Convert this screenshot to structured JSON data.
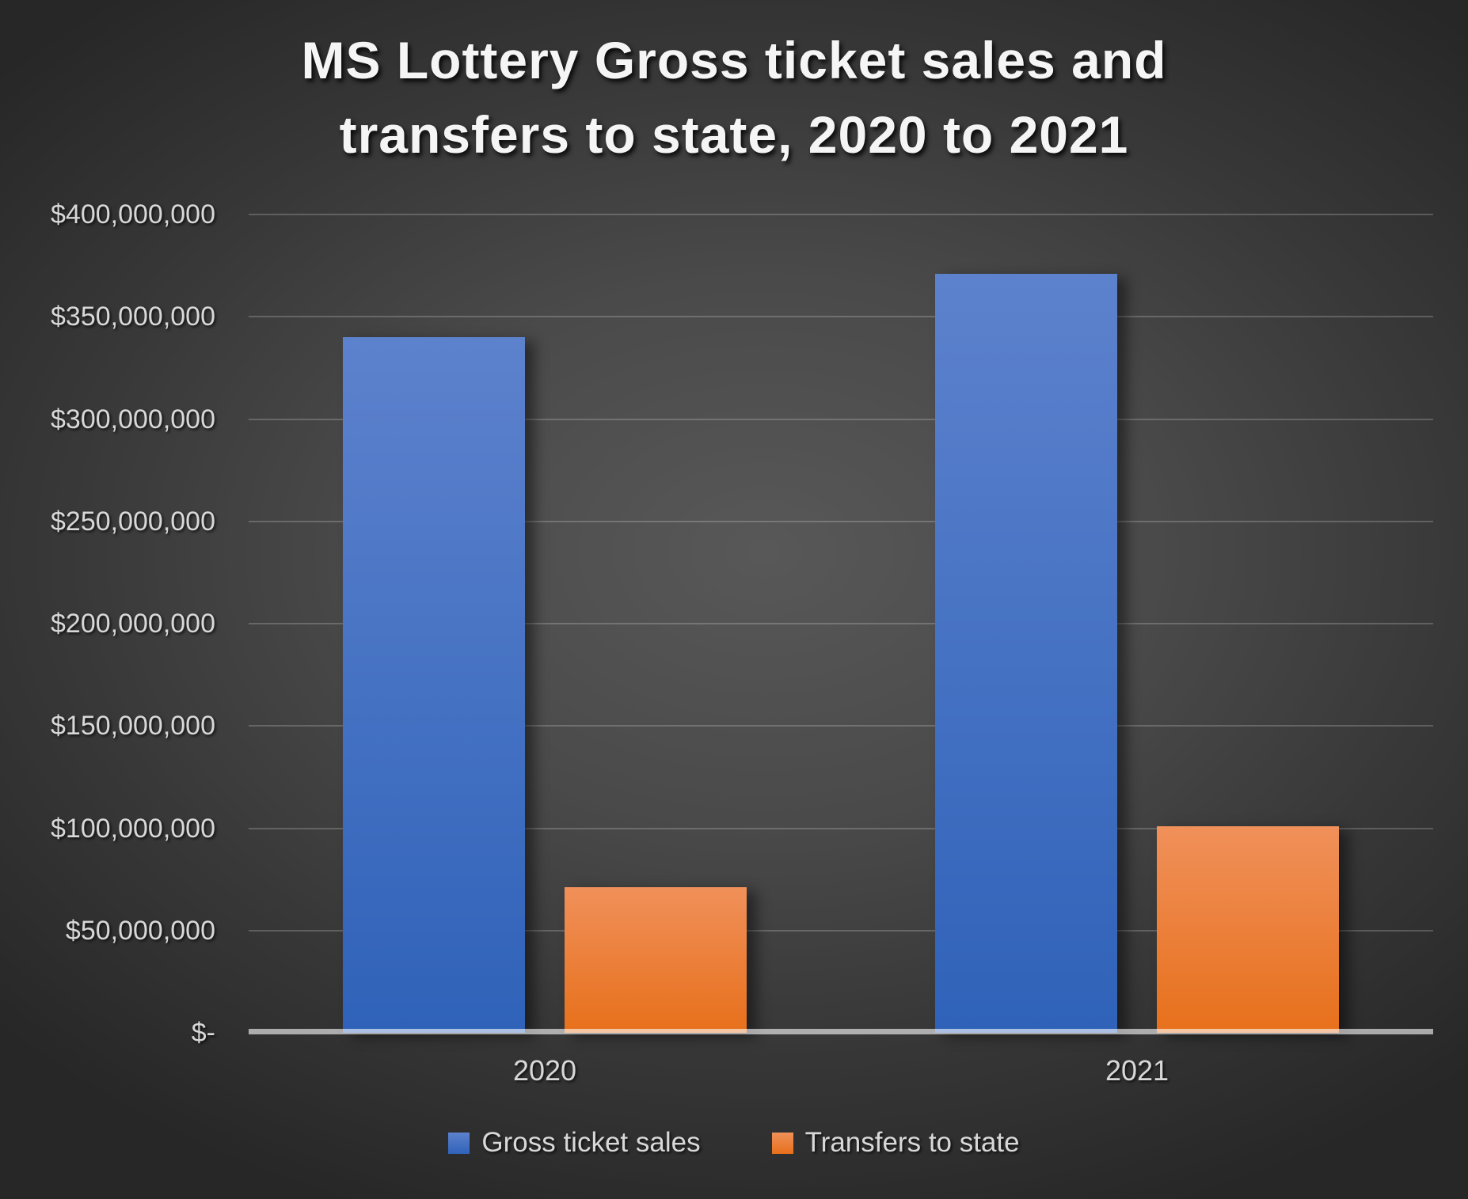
{
  "title": "MS Lottery Gross ticket sales and transfers to state, 2020 to 2021",
  "title_lines": [
    "MS Lottery Gross ticket sales and",
    "transfers to state, 2020 to 2021"
  ],
  "chart_data": {
    "type": "bar",
    "title": "MS Lottery Gross ticket sales and transfers to state, 2020 to 2021",
    "categories": [
      "2020",
      "2021"
    ],
    "series": [
      {
        "name": "Gross ticket sales",
        "values": [
          340000000,
          371000000
        ],
        "color_top": "#5D82CD",
        "color_bottom": "#2F62B9"
      },
      {
        "name": "Transfers to state",
        "values": [
          71000000,
          101000000
        ],
        "color_top": "#F0905A",
        "color_bottom": "#E7701B"
      }
    ],
    "xlabel": "",
    "ylabel": "",
    "ylim": [
      0,
      400000000
    ],
    "grid": true,
    "legend_position": "bottom",
    "y_ticks": [
      {
        "value": 400000000,
        "label": "$400,000,000"
      },
      {
        "value": 350000000,
        "label": "$350,000,000"
      },
      {
        "value": 300000000,
        "label": "$300,000,000"
      },
      {
        "value": 250000000,
        "label": "$250,000,000"
      },
      {
        "value": 200000000,
        "label": "$200,000,000"
      },
      {
        "value": 150000000,
        "label": "$150,000,000"
      },
      {
        "value": 100000000,
        "label": "$100,000,000"
      },
      {
        "value": 50000000,
        "label": "$50,000,000"
      },
      {
        "value": 0,
        "label": "$-"
      }
    ]
  }
}
